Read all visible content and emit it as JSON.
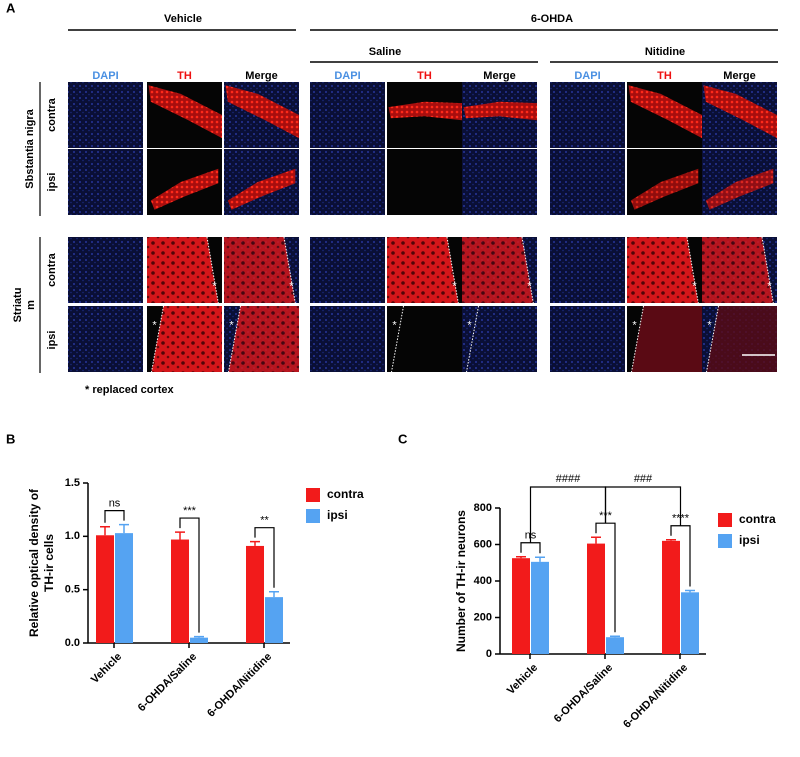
{
  "panel_a": {
    "label": "A",
    "groups": [
      "Vehicle",
      "6-OHDA"
    ],
    "subgroups": [
      "Saline",
      "Nitidine"
    ],
    "columns": [
      "DAPI",
      "TH",
      "Merge"
    ],
    "regions": [
      {
        "name": [
          "Sbstantia nigra"
        ],
        "rows": [
          "contra",
          "ipsi"
        ]
      },
      {
        "name": [
          "Striatu",
          "m"
        ],
        "rows": [
          "contra",
          "ipsi"
        ]
      }
    ],
    "star": "*",
    "note": "* replaced cortex"
  },
  "chart_data": [
    {
      "panel": "B",
      "type": "bar",
      "y_label": [
        "Relative optical density of",
        "TH-ir cells"
      ],
      "categories": [
        "Vehicle",
        "6-OHDA/Saline",
        "6-OHDA/Nitidine"
      ],
      "series": [
        {
          "name": "contra",
          "color": "#f21b1b",
          "values": [
            1.01,
            0.97,
            0.91
          ],
          "errors": [
            0.08,
            0.07,
            0.04
          ]
        },
        {
          "name": "ipsi",
          "color": "#55a3f2",
          "values": [
            1.03,
            0.05,
            0.43
          ],
          "errors": [
            0.08,
            0.01,
            0.05
          ]
        }
      ],
      "ylim": [
        0,
        1.5
      ],
      "yticks": [
        {
          "value": 0,
          "label": "0.0"
        },
        0.5,
        {
          "value": 1,
          "label": "1.0"
        },
        1.5
      ],
      "annotations": [
        "ns",
        "***",
        "**"
      ]
    },
    {
      "panel": "C",
      "type": "bar",
      "y_label": [
        "Number of TH-ir neurons"
      ],
      "categories": [
        "Vehicle",
        "6-OHDA/Saline",
        "6-OHDA/Nitidine"
      ],
      "series": [
        {
          "name": "contra",
          "color": "#f21b1b",
          "values": [
            525,
            605,
            620
          ],
          "errors": [
            8,
            35,
            6
          ]
        },
        {
          "name": "ipsi",
          "color": "#55a3f2",
          "values": [
            505,
            92,
            338
          ],
          "errors": [
            25,
            5,
            10
          ]
        }
      ],
      "ylim": [
        0,
        800
      ],
      "yticks": [
        0,
        200,
        400,
        600,
        800
      ],
      "annotations": [
        "ns",
        "***",
        "****",
        "####",
        "###"
      ]
    }
  ]
}
